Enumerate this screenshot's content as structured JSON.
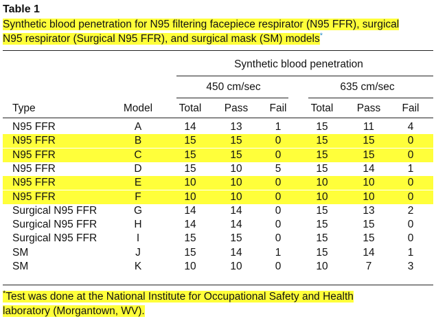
{
  "table_label": "Table 1",
  "caption": {
    "line1": "Synthetic blood penetration for N95 filtering facepiece respirator (N95 FFR), surgical",
    "line2": "N95 respirator (Surgical N95 FFR), and surgical mask (SM) models",
    "marker": "*"
  },
  "header": {
    "group": "Synthetic blood penetration",
    "speed1": "450 cm/sec",
    "speed2": "635 cm/sec",
    "type": "Type",
    "model": "Model",
    "cols": [
      "Total",
      "Pass",
      "Fail",
      "Total",
      "Pass",
      "Fail"
    ]
  },
  "rows": [
    {
      "type": "N95 FFR",
      "model": "A",
      "v": [
        "14",
        "13",
        "1",
        "15",
        "11",
        "4"
      ],
      "highlight": false
    },
    {
      "type": "N95 FFR",
      "model": "B",
      "v": [
        "15",
        "15",
        "0",
        "15",
        "15",
        "0"
      ],
      "highlight": true
    },
    {
      "type": "N95 FFR",
      "model": "C",
      "v": [
        "15",
        "15",
        "0",
        "15",
        "15",
        "0"
      ],
      "highlight": true
    },
    {
      "type": "N95 FFR",
      "model": "D",
      "v": [
        "15",
        "10",
        "5",
        "15",
        "14",
        "1"
      ],
      "highlight": false
    },
    {
      "type": "N95 FFR",
      "model": "E",
      "v": [
        "10",
        "10",
        "0",
        "10",
        "10",
        "0"
      ],
      "highlight": true
    },
    {
      "type": "N95 FFR",
      "model": "F",
      "v": [
        "10",
        "10",
        "0",
        "10",
        "10",
        "0"
      ],
      "highlight": true
    },
    {
      "type": "Surgical N95 FFR",
      "model": "G",
      "v": [
        "14",
        "14",
        "0",
        "15",
        "13",
        "2"
      ],
      "highlight": false
    },
    {
      "type": "Surgical N95 FFR",
      "model": "H",
      "v": [
        "14",
        "14",
        "0",
        "15",
        "15",
        "0"
      ],
      "highlight": false
    },
    {
      "type": "Surgical N95 FFR",
      "model": "I",
      "v": [
        "15",
        "15",
        "0",
        "15",
        "15",
        "0"
      ],
      "highlight": false
    },
    {
      "type": "SM",
      "model": "J",
      "v": [
        "15",
        "14",
        "1",
        "15",
        "14",
        "1"
      ],
      "highlight": false
    },
    {
      "type": "SM",
      "model": "K",
      "v": [
        "10",
        "10",
        "0",
        "10",
        "7",
        "3"
      ],
      "highlight": false
    }
  ],
  "footnote": {
    "marker": "*",
    "line1": "Test was done at the National Institute for Occupational Safety and Health",
    "line2": "laboratory (Morgantown, WV)."
  },
  "colors": {
    "highlight": "#ffff3a",
    "asterisk": "#2a8fc9"
  }
}
